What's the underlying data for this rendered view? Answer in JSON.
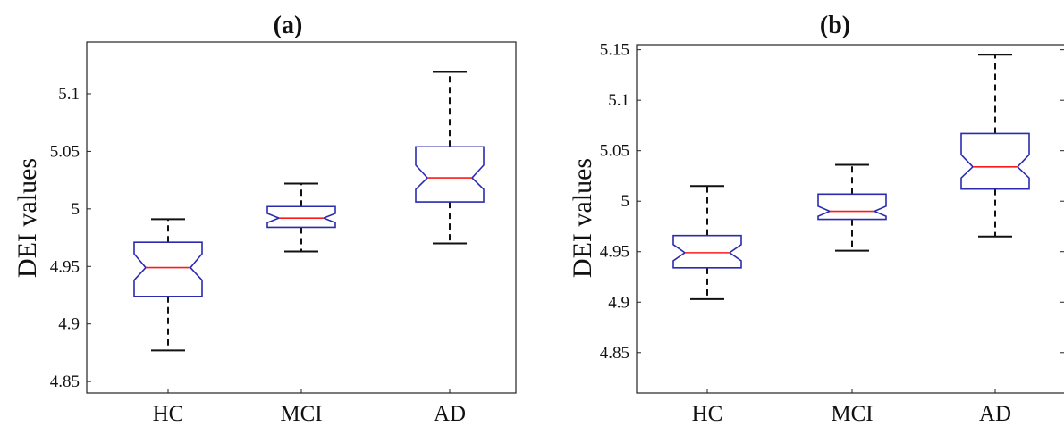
{
  "chart_data": [
    {
      "type": "box",
      "title": "(a)",
      "ylabel": "DEI values",
      "ylim": [
        4.84,
        5.145
      ],
      "yticks": [
        "4.85",
        "4.9",
        "4.95",
        "5",
        "5.05",
        "5.1"
      ],
      "categories": [
        "HC",
        "MCI",
        "AD"
      ],
      "boxes": [
        {
          "whisker_low": 4.877,
          "q1": 4.924,
          "notch_low": 4.938,
          "median": 4.949,
          "notch_high": 4.961,
          "q3": 4.971,
          "whisker_high": 4.991
        },
        {
          "whisker_low": 4.963,
          "q1": 4.984,
          "notch_low": 4.988,
          "median": 4.992,
          "notch_high": 4.996,
          "q3": 5.002,
          "whisker_high": 5.022
        },
        {
          "whisker_low": 4.97,
          "q1": 5.006,
          "notch_low": 5.017,
          "median": 5.027,
          "notch_high": 5.038,
          "q3": 5.054,
          "whisker_high": 5.119
        }
      ]
    },
    {
      "type": "box",
      "title": "(b)",
      "ylabel": "DEI values",
      "ylim": [
        4.81,
        5.155
      ],
      "yticks": [
        "4.85",
        "4.9",
        "4.95",
        "5",
        "5.05",
        "5.1",
        "5.15"
      ],
      "categories": [
        "HC",
        "MCI",
        "AD"
      ],
      "boxes": [
        {
          "whisker_low": 4.903,
          "q1": 4.934,
          "notch_low": 4.941,
          "median": 4.949,
          "notch_high": 4.957,
          "q3": 4.966,
          "whisker_high": 5.015
        },
        {
          "whisker_low": 4.951,
          "q1": 4.982,
          "notch_low": 4.985,
          "median": 4.99,
          "notch_high": 4.995,
          "q3": 5.007,
          "whisker_high": 5.036
        },
        {
          "whisker_low": 4.965,
          "q1": 5.012,
          "notch_low": 5.023,
          "median": 5.034,
          "notch_high": 5.046,
          "q3": 5.067,
          "whisker_high": 5.145
        }
      ]
    }
  ]
}
